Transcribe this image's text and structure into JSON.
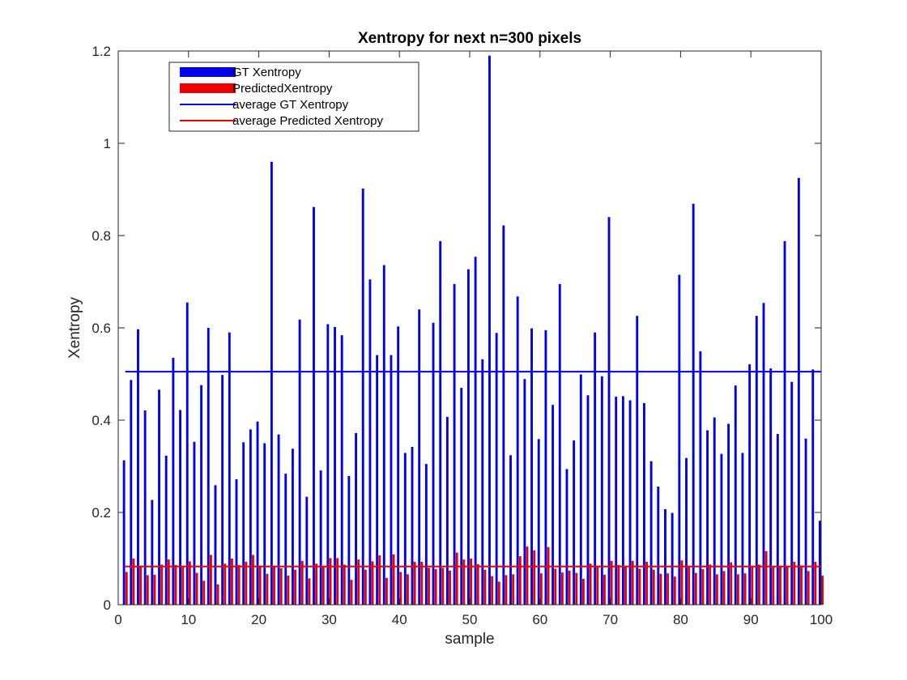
{
  "chart_data": {
    "type": "bar",
    "title": "Xentropy for next n=300 pixels",
    "xlabel": "sample",
    "ylabel": "Xentropy",
    "xlim": [
      0,
      100
    ],
    "ylim": [
      0,
      1.2
    ],
    "xticks": [
      0,
      10,
      20,
      30,
      40,
      50,
      60,
      70,
      80,
      90,
      100
    ],
    "yticks": [
      0,
      0.2,
      0.4,
      0.6,
      0.8,
      1,
      1.2
    ],
    "ytick_labels": [
      "0",
      "0.2",
      "0.4",
      "0.6",
      "0.8",
      "1",
      "1.2"
    ],
    "grid": false,
    "legend_position": "top-left",
    "x": [
      1,
      2,
      3,
      4,
      5,
      6,
      7,
      8,
      9,
      10,
      11,
      12,
      13,
      14,
      15,
      16,
      17,
      18,
      19,
      20,
      21,
      22,
      23,
      24,
      25,
      26,
      27,
      28,
      29,
      30,
      31,
      32,
      33,
      34,
      35,
      36,
      37,
      38,
      39,
      40,
      41,
      42,
      43,
      44,
      45,
      46,
      47,
      48,
      49,
      50,
      51,
      52,
      53,
      54,
      55,
      56,
      57,
      58,
      59,
      60,
      61,
      62,
      63,
      64,
      65,
      66,
      67,
      68,
      69,
      70,
      71,
      72,
      73,
      74,
      75,
      76,
      77,
      78,
      79,
      80,
      81,
      82,
      83,
      84,
      85,
      86,
      87,
      88,
      89,
      90,
      91,
      92,
      93,
      94,
      95,
      96,
      97,
      98,
      99,
      100
    ],
    "series": [
      {
        "name": "GT Xentropy",
        "color": "#0000ee",
        "values": [
          0.313,
          0.487,
          0.597,
          0.421,
          0.227,
          0.466,
          0.323,
          0.535,
          0.422,
          0.655,
          0.353,
          0.476,
          0.6,
          0.259,
          0.498,
          0.59,
          0.272,
          0.352,
          0.38,
          0.397,
          0.35,
          0.96,
          0.369,
          0.284,
          0.338,
          0.618,
          0.234,
          0.862,
          0.291,
          0.608,
          0.602,
          0.584,
          0.279,
          0.372,
          0.902,
          0.705,
          0.541,
          0.736,
          0.541,
          0.603,
          0.329,
          0.342,
          0.64,
          0.305,
          0.611,
          0.788,
          0.407,
          0.695,
          0.47,
          0.727,
          0.754,
          0.532,
          1.19,
          0.589,
          0.822,
          0.324,
          0.668,
          0.489,
          0.599,
          0.359,
          0.595,
          0.433,
          0.695,
          0.294,
          0.356,
          0.499,
          0.454,
          0.59,
          0.495,
          0.84,
          0.451,
          0.452,
          0.443,
          0.626,
          0.437,
          0.311,
          0.256,
          0.207,
          0.199,
          0.715,
          0.318,
          0.869,
          0.549,
          0.378,
          0.406,
          0.327,
          0.392,
          0.475,
          0.329,
          0.521,
          0.626,
          0.654,
          0.512,
          0.37,
          0.788,
          0.483,
          0.925,
          0.36,
          0.51,
          0.182
        ]
      },
      {
        "name": "PredictedXentropy",
        "color": "#ee0000",
        "values": [
          0.071,
          0.1,
          0.083,
          0.064,
          0.065,
          0.087,
          0.098,
          0.086,
          0.083,
          0.094,
          0.069,
          0.052,
          0.108,
          0.044,
          0.089,
          0.1,
          0.086,
          0.093,
          0.108,
          0.082,
          0.067,
          0.083,
          0.079,
          0.063,
          0.076,
          0.095,
          0.057,
          0.089,
          0.084,
          0.101,
          0.101,
          0.087,
          0.054,
          0.098,
          0.076,
          0.094,
          0.107,
          0.058,
          0.109,
          0.071,
          0.066,
          0.093,
          0.093,
          0.08,
          0.077,
          0.08,
          0.074,
          0.113,
          0.098,
          0.1,
          0.088,
          0.076,
          0.062,
          0.05,
          0.064,
          0.066,
          0.105,
          0.126,
          0.118,
          0.068,
          0.125,
          0.078,
          0.07,
          0.074,
          0.069,
          0.056,
          0.089,
          0.082,
          0.065,
          0.095,
          0.086,
          0.083,
          0.095,
          0.078,
          0.093,
          0.076,
          0.067,
          0.068,
          0.061,
          0.096,
          0.083,
          0.069,
          0.077,
          0.087,
          0.066,
          0.073,
          0.092,
          0.066,
          0.068,
          0.083,
          0.087,
          0.116,
          0.083,
          0.082,
          0.082,
          0.093,
          0.085,
          0.073,
          0.093,
          0.063
        ]
      }
    ],
    "reference_lines": [
      {
        "name": "average GT Xentropy",
        "y": 0.505,
        "color": "#0000ee"
      },
      {
        "name": "average Predicted Xentropy",
        "y": 0.083,
        "color": "#ee0000"
      }
    ]
  }
}
